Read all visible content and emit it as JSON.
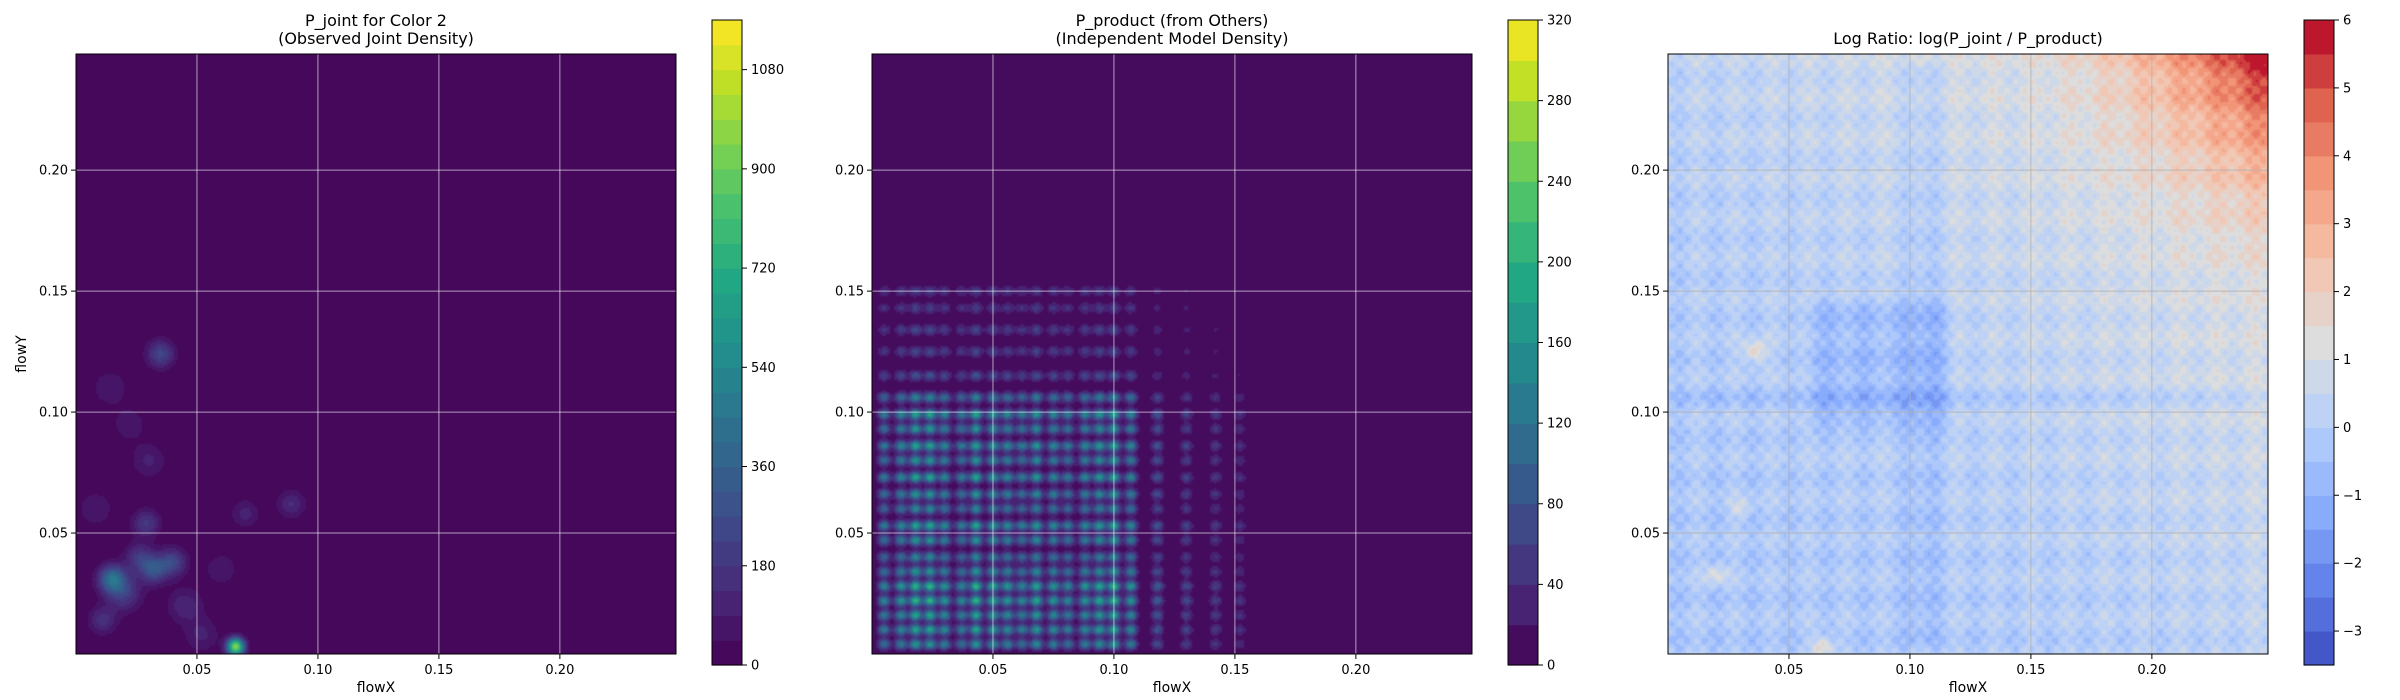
{
  "chart_data": [
    {
      "type": "heatmap",
      "title": "P_joint for Color 2\n(Observed Joint Density)",
      "xlabel": "flowX",
      "ylabel": "flowY",
      "xlim": [
        0.0,
        0.248
      ],
      "ylim": [
        0.0,
        0.248
      ],
      "xticks": [
        0.05,
        0.1,
        0.15,
        0.2
      ],
      "xtick_labels": [
        "0.05",
        "0.10",
        "0.15",
        "0.20"
      ],
      "yticks": [
        0.05,
        0.1,
        0.15,
        0.2
      ],
      "ytick_labels": [
        "0.05",
        "0.10",
        "0.15",
        "0.20"
      ],
      "grid": true,
      "colormap": "viridis",
      "background_color": "#440154",
      "colorbar": {
        "min": 0,
        "max": 1170,
        "levels": 26,
        "ticks": [
          0,
          180,
          360,
          540,
          720,
          900,
          1080
        ],
        "tick_labels": [
          "0",
          "180",
          "360",
          "540",
          "720",
          "900",
          "1080"
        ]
      },
      "blobs": [
        {
          "x": 0.066,
          "y": 0.003,
          "value": 960,
          "sigma": 0.0025
        },
        {
          "x": 0.015,
          "y": 0.031,
          "value": 420,
          "sigma": 0.004
        },
        {
          "x": 0.032,
          "y": 0.035,
          "value": 300,
          "sigma": 0.004
        },
        {
          "x": 0.04,
          "y": 0.038,
          "value": 240,
          "sigma": 0.004
        },
        {
          "x": 0.026,
          "y": 0.04,
          "value": 180,
          "sigma": 0.004
        },
        {
          "x": 0.011,
          "y": 0.014,
          "value": 160,
          "sigma": 0.004
        },
        {
          "x": 0.02,
          "y": 0.025,
          "value": 200,
          "sigma": 0.005
        },
        {
          "x": 0.029,
          "y": 0.054,
          "value": 190,
          "sigma": 0.004
        },
        {
          "x": 0.035,
          "y": 0.124,
          "value": 240,
          "sigma": 0.004
        },
        {
          "x": 0.089,
          "y": 0.062,
          "value": 140,
          "sigma": 0.004
        },
        {
          "x": 0.07,
          "y": 0.058,
          "value": 110,
          "sigma": 0.004
        },
        {
          "x": 0.03,
          "y": 0.08,
          "value": 100,
          "sigma": 0.005
        },
        {
          "x": 0.014,
          "y": 0.11,
          "value": 90,
          "sigma": 0.005
        },
        {
          "x": 0.045,
          "y": 0.02,
          "value": 130,
          "sigma": 0.005
        },
        {
          "x": 0.052,
          "y": 0.008,
          "value": 100,
          "sigma": 0.005
        },
        {
          "x": 0.008,
          "y": 0.06,
          "value": 90,
          "sigma": 0.005
        },
        {
          "x": 0.022,
          "y": 0.095,
          "value": 80,
          "sigma": 0.005
        },
        {
          "x": 0.06,
          "y": 0.035,
          "value": 80,
          "sigma": 0.005
        }
      ]
    },
    {
      "type": "heatmap",
      "title": "P_product (from Others)\n(Independent Model Density)",
      "xlabel": "flowX",
      "ylabel": "",
      "xlim": [
        0.0,
        0.248
      ],
      "ylim": [
        0.0,
        0.248
      ],
      "xticks": [
        0.05,
        0.1,
        0.15,
        0.2
      ],
      "xtick_labels": [
        "0.05",
        "0.10",
        "0.15",
        "0.20"
      ],
      "yticks": [
        0.05,
        0.1,
        0.15,
        0.2
      ],
      "ytick_labels": [
        "0.05",
        "0.10",
        "0.15",
        "0.20"
      ],
      "grid": true,
      "colormap": "viridis",
      "background_color": "#440154",
      "colorbar": {
        "min": 0,
        "max": 320,
        "levels": 16,
        "ticks": [
          0,
          40,
          80,
          120,
          160,
          200,
          240,
          280,
          320
        ],
        "tick_labels": [
          "0",
          "40",
          "80",
          "120",
          "160",
          "200",
          "240",
          "280",
          "320"
        ]
      },
      "x_peaks": [
        0.005,
        0.012,
        0.018,
        0.024,
        0.03,
        0.037,
        0.043,
        0.05,
        0.056,
        0.062,
        0.068,
        0.075,
        0.081,
        0.088,
        0.094,
        0.1,
        0.107,
        0.118,
        0.13,
        0.142,
        0.152
      ],
      "x_peak_weights": [
        0.7,
        0.8,
        1.0,
        1.0,
        0.8,
        0.7,
        1.0,
        0.9,
        0.8,
        0.7,
        0.9,
        0.8,
        0.7,
        0.8,
        0.9,
        1.0,
        0.8,
        0.45,
        0.35,
        0.3,
        0.25
      ],
      "y_peaks": [
        0.004,
        0.01,
        0.016,
        0.022,
        0.028,
        0.034,
        0.04,
        0.047,
        0.053,
        0.06,
        0.066,
        0.073,
        0.08,
        0.086,
        0.093,
        0.099,
        0.106,
        0.115,
        0.125,
        0.134,
        0.143,
        0.15
      ],
      "y_peak_weights": [
        0.8,
        0.9,
        0.9,
        1.0,
        1.0,
        0.8,
        0.7,
        0.8,
        0.9,
        0.7,
        0.8,
        0.9,
        0.8,
        0.9,
        0.8,
        0.9,
        0.7,
        0.4,
        0.35,
        0.35,
        0.3,
        0.3
      ],
      "peak_value": 210
    },
    {
      "type": "heatmap",
      "title": "Log Ratio: log(P_joint / P_product)",
      "xlabel": "flowX",
      "ylabel": "",
      "xlim": [
        0.0,
        0.248
      ],
      "ylim": [
        0.0,
        0.248
      ],
      "xticks": [
        0.05,
        0.1,
        0.15,
        0.2
      ],
      "xtick_labels": [
        "0.05",
        "0.10",
        "0.15",
        "0.20"
      ],
      "yticks": [
        0.05,
        0.1,
        0.15,
        0.2
      ],
      "ytick_labels": [
        "0.05",
        "0.10",
        "0.15",
        "0.20"
      ],
      "grid": true,
      "colormap": "coolwarm",
      "colorbar": {
        "min": -3.5,
        "max": 6,
        "levels": 19,
        "ticks": [
          -3,
          -2,
          -1,
          0,
          1,
          2,
          3,
          4,
          5,
          6
        ],
        "tick_labels": [
          "−3",
          "−2",
          "−1",
          "0",
          "1",
          "2",
          "3",
          "4",
          "5",
          "6"
        ]
      },
      "cool_regions": [
        {
          "x0": 0.055,
          "x1": 0.12,
          "y0": 0.09,
          "y1": 0.15,
          "value": -0.7
        },
        {
          "x0": 0.095,
          "x1": 0.115,
          "y0": 0.0,
          "y1": 0.248,
          "value": -0.5
        },
        {
          "x0": 0.0,
          "x1": 0.248,
          "y0": 0.1,
          "y1": 0.112,
          "value": -0.4
        }
      ],
      "warm_spots": [
        {
          "x": 0.036,
          "y": 0.125,
          "value": 2.0
        },
        {
          "x": 0.064,
          "y": 0.003,
          "value": 2.0
        },
        {
          "x": 0.02,
          "y": 0.033,
          "value": 1.4
        },
        {
          "x": 0.03,
          "y": 0.06,
          "value": 1.0
        }
      ],
      "corner_value": 5.5
    }
  ]
}
